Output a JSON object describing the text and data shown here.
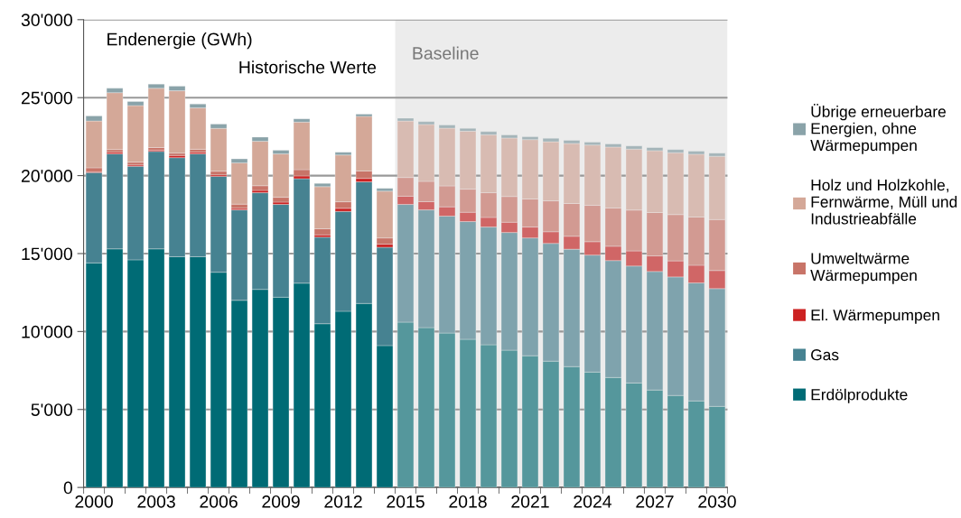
{
  "chart_data": {
    "type": "bar",
    "stacked": true,
    "title": "Endenergie (GWh)",
    "annotations": [
      "Historische Werte"
    ],
    "categories": [
      "2000",
      null,
      null,
      "2003",
      null,
      null,
      "2006",
      null,
      null,
      "2009",
      null,
      null,
      "2012",
      null,
      null,
      "2015",
      null,
      null,
      "2018",
      null,
      null,
      "2021",
      null,
      null,
      "2024",
      null,
      null,
      "2027",
      null,
      null,
      "2030"
    ],
    "ylim": [
      0,
      30000
    ],
    "yticks": [
      0,
      {
        "value": 5000,
        "label": "5'000"
      },
      {
        "value": 10000,
        "label": "10'000"
      },
      {
        "value": 15000,
        "label": "15'000"
      },
      {
        "value": 20000,
        "label": "20'000"
      },
      {
        "value": 25000,
        "label": "25'000"
      },
      {
        "value": 30000,
        "label": "30'000"
      }
    ],
    "grid": "y",
    "legend": "right",
    "bands": [
      {
        "axis": "x",
        "from": "2015",
        "to": "2030",
        "label": "Baseline",
        "color": "#ececec"
      }
    ],
    "series": [
      {
        "name": "Erdölprodukte",
        "colors": [
          "#006b75",
          "#006b75",
          "#006b75",
          "#006b75",
          "#006b75",
          "#006b75",
          "#006b75",
          "#006b75",
          "#006b75",
          "#006b75",
          "#006b75",
          "#006b75",
          "#006b75",
          "#006b75",
          "#006b75",
          "#55979c",
          "#55979c",
          "#55979c",
          "#55979c",
          "#55979c",
          "#55979c",
          "#55979c",
          "#55979c",
          "#55979c",
          "#55979c",
          "#55979c",
          "#55979c",
          "#55979c",
          "#55979c",
          "#55979c",
          "#55979c"
        ],
        "values": [
          14400,
          15300,
          14600,
          15300,
          14800,
          14800,
          13800,
          12000,
          12700,
          12200,
          13100,
          10500,
          11300,
          11800,
          9100,
          10600,
          10250,
          9900,
          9500,
          9150,
          8800,
          8450,
          8100,
          7750,
          7400,
          7050,
          6700,
          6250,
          5900,
          5550,
          5200
        ]
      },
      {
        "name": "Gas",
        "colors": [
          "#468291",
          "#468291",
          "#468291",
          "#468291",
          "#468291",
          "#468291",
          "#468291",
          "#468291",
          "#468291",
          "#468291",
          "#468291",
          "#468291",
          "#468291",
          "#468291",
          "#468291",
          "#7fa3ad",
          "#7fa3ad",
          "#7fa3ad",
          "#7fa3ad",
          "#7fa3ad",
          "#7fa3ad",
          "#7fa3ad",
          "#7fa3ad",
          "#7fa3ad",
          "#7fa3ad",
          "#7fa3ad",
          "#7fa3ad",
          "#7fa3ad",
          "#7fa3ad",
          "#7fa3ad",
          "#7fa3ad"
        ],
        "values": [
          5800,
          6100,
          6000,
          6250,
          6350,
          6600,
          6150,
          5800,
          6200,
          5950,
          6700,
          5550,
          6400,
          7800,
          6300,
          7550,
          7550,
          7500,
          7550,
          7550,
          7550,
          7550,
          7550,
          7530,
          7500,
          7500,
          7500,
          7600,
          7600,
          7570,
          7550
        ]
      },
      {
        "name": "El. Wärmepumpen",
        "colors": [
          "#cc2222",
          "#cc2222",
          "#cc2222",
          "#cc2222",
          "#cc2222",
          "#cc2222",
          "#cc2222",
          "#cc2222",
          "#cc2222",
          "#cc2222",
          "#cc2222",
          "#cc2222",
          "#cc2222",
          "#cc2222",
          "#cc2222",
          "#d06666",
          "#d06666",
          "#d06666",
          "#d06666",
          "#d06666",
          "#d06666",
          "#d06666",
          "#d06666",
          "#d06666",
          "#d06666",
          "#d06666",
          "#d06666",
          "#d06666",
          "#d06666",
          "#d06666",
          "#d06666"
        ],
        "values": [
          50,
          100,
          80,
          90,
          140,
          100,
          100,
          100,
          150,
          150,
          180,
          150,
          200,
          220,
          200,
          530,
          530,
          600,
          600,
          620,
          660,
          700,
          750,
          830,
          860,
          920,
          970,
          1000,
          1030,
          1130,
          1160
        ]
      },
      {
        "name": "Umweltwärme\nWärmepumpen",
        "colors": [
          "#c87468",
          "#c87468",
          "#c87468",
          "#c87468",
          "#c87468",
          "#c87468",
          "#c87468",
          "#c87468",
          "#c87468",
          "#c87468",
          "#c87468",
          "#c87468",
          "#c87468",
          "#c87468",
          "#c87468",
          "#d29a92",
          "#d29a92",
          "#d29a92",
          "#d29a92",
          "#d29a92",
          "#d29a92",
          "#d29a92",
          "#d29a92",
          "#d29a92",
          "#d29a92",
          "#d29a92",
          "#d29a92",
          "#d29a92",
          "#d29a92",
          "#d29a92",
          "#d29a92"
        ],
        "values": [
          250,
          170,
          180,
          160,
          150,
          190,
          230,
          270,
          300,
          310,
          400,
          390,
          420,
          480,
          400,
          1200,
          1300,
          1340,
          1480,
          1580,
          1650,
          1800,
          1980,
          2100,
          2330,
          2450,
          2620,
          2780,
          2970,
          3090,
          3270
        ]
      },
      {
        "name": "Holz und Holzkohle,\nFernwärme, Müll und\nIndustrieabfälle",
        "colors": [
          "#d4a898",
          "#d4a898",
          "#d4a898",
          "#d4a898",
          "#d4a898",
          "#d4a898",
          "#d4a898",
          "#d4a898",
          "#d4a898",
          "#d4a898",
          "#d4a898",
          "#d4a898",
          "#d4a898",
          "#d4a898",
          "#d4a898",
          "#d8bbb2",
          "#d8bbb2",
          "#d8bbb2",
          "#d8bbb2",
          "#d8bbb2",
          "#d8bbb2",
          "#d8bbb2",
          "#d8bbb2",
          "#d8bbb2",
          "#d8bbb2",
          "#d8bbb2",
          "#d8bbb2",
          "#d8bbb2",
          "#d8bbb2",
          "#d8bbb2",
          "#d8bbb2"
        ],
        "values": [
          3000,
          3650,
          3630,
          3800,
          4000,
          2650,
          2750,
          2650,
          2850,
          2780,
          3050,
          2700,
          3000,
          3500,
          3000,
          3620,
          3650,
          3700,
          3720,
          3720,
          3750,
          3810,
          3790,
          3850,
          3870,
          3910,
          3910,
          3970,
          3970,
          4030,
          4060
        ]
      },
      {
        "name": "Übrige erneuerbare\nEnergien, ohne\nWärmepumpen",
        "colors": [
          "#8aa3a9",
          "#8aa3a9",
          "#8aa3a9",
          "#8aa3a9",
          "#8aa3a9",
          "#8aa3a9",
          "#8aa3a9",
          "#8aa3a9",
          "#8aa3a9",
          "#8aa3a9",
          "#8aa3a9",
          "#8aa3a9",
          "#8aa3a9",
          "#8aa3a9",
          "#8aa3a9",
          "#a5b5b9",
          "#a5b5b9",
          "#a5b5b9",
          "#a5b5b9",
          "#a5b5b9",
          "#a5b5b9",
          "#a5b5b9",
          "#a5b5b9",
          "#a5b5b9",
          "#a5b5b9",
          "#a5b5b9",
          "#a5b5b9",
          "#a5b5b9",
          "#a5b5b9",
          "#a5b5b9",
          "#a5b5b9"
        ],
        "values": [
          330,
          280,
          260,
          270,
          290,
          250,
          270,
          250,
          270,
          230,
          210,
          210,
          180,
          140,
          180,
          180,
          180,
          200,
          180,
          200,
          200,
          180,
          220,
          200,
          180,
          200,
          200,
          200,
          200,
          200,
          200
        ]
      }
    ]
  }
}
